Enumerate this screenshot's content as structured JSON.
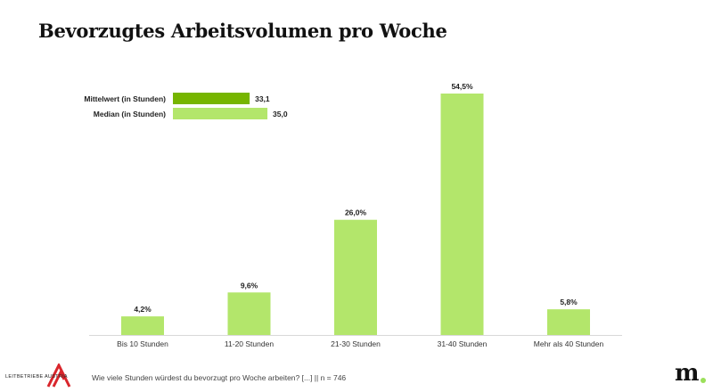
{
  "title": "Bevorzugtes Arbeitsvolumen pro Woche",
  "footer": "Wie viele Stunden würdest du bevorzugt pro Woche arbeiten? [...] || n = 746",
  "logo_text": "LEITBETRIEBE AUSTRIA",
  "brand_mark": "m.",
  "chart_data": [
    {
      "type": "bar",
      "title": "Bevorzugtes Arbeitsvolumen pro Woche",
      "categories": [
        "Bis 10 Stunden",
        "11-20 Stunden",
        "21-30 Stunden",
        "31-40 Stunden",
        "Mehr als 40 Stunden"
      ],
      "values": [
        4.2,
        9.6,
        26.0,
        54.5,
        5.8
      ],
      "labels": [
        "4,2%",
        "9,6%",
        "26,0%",
        "54,5%",
        "5,8%"
      ],
      "ylim": [
        0,
        55
      ],
      "grid": false,
      "color": "#b3e66b"
    },
    {
      "type": "bar",
      "orientation": "horizontal",
      "categories": [
        "Mittelwert (in Stunden)",
        "Median (in Stunden)"
      ],
      "values": [
        33.1,
        35.0
      ],
      "labels": [
        "33,1",
        "35,0"
      ],
      "colors": [
        "#76b500",
        "#b3e66b"
      ]
    }
  ]
}
